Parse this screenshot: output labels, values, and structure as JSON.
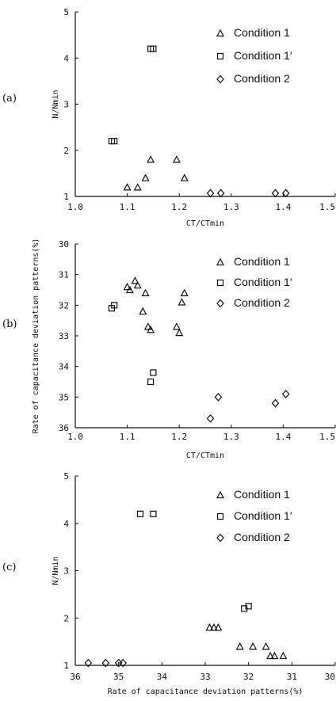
{
  "chart_data": [
    {
      "type": "scatter",
      "panel_label": "(a)",
      "xlabel": "CT/CTmin",
      "ylabel": "N/Nmin",
      "xlim": [
        1.0,
        1.5
      ],
      "ylim": [
        1,
        5
      ],
      "x_ticks": [
        "1.0",
        "1.1",
        "1.2",
        "1.3",
        "1.4",
        "1.5"
      ],
      "y_ticks": [
        "1",
        "2",
        "3",
        "4",
        "5"
      ],
      "legend": [
        "Condition 1",
        "Condition 1′",
        "Condition 2"
      ],
      "legend_position": "top-right",
      "series": [
        {
          "name": "Condition 1",
          "marker": "triangle",
          "points": [
            [
              1.1,
              1.2
            ],
            [
              1.12,
              1.2
            ],
            [
              1.135,
              1.4
            ],
            [
              1.145,
              1.8
            ],
            [
              1.195,
              1.8
            ],
            [
              1.21,
              1.4
            ]
          ]
        },
        {
          "name": "Condition 1′",
          "marker": "square",
          "points": [
            [
              1.07,
              2.2
            ],
            [
              1.075,
              2.2
            ],
            [
              1.145,
              4.2
            ],
            [
              1.15,
              4.2
            ]
          ]
        },
        {
          "name": "Condition 2",
          "marker": "diamond",
          "points": [
            [
              1.26,
              1.07
            ],
            [
              1.28,
              1.07
            ],
            [
              1.385,
              1.07
            ],
            [
              1.405,
              1.07
            ]
          ]
        }
      ]
    },
    {
      "type": "scatter",
      "panel_label": "(b)",
      "xlabel": "CT/CTmin",
      "ylabel": "Rate of capacitance deviation patterns(%)",
      "xlim": [
        1.0,
        1.5
      ],
      "ylim": [
        30,
        36
      ],
      "y_inverted": true,
      "x_ticks": [
        "1.0",
        "1.1",
        "1.2",
        "1.3",
        "1.4",
        "1.5"
      ],
      "y_ticks": [
        "30",
        "31",
        "32",
        "33",
        "34",
        "35",
        "36"
      ],
      "legend": [
        "Condition 1",
        "Condition 1′",
        "Condition 2"
      ],
      "legend_position": "top-right",
      "series": [
        {
          "name": "Condition 1",
          "marker": "triangle",
          "points": [
            [
              1.1,
              31.4
            ],
            [
              1.105,
              31.5
            ],
            [
              1.115,
              31.2
            ],
            [
              1.12,
              31.35
            ],
            [
              1.13,
              32.2
            ],
            [
              1.135,
              31.6
            ],
            [
              1.14,
              32.7
            ],
            [
              1.145,
              32.8
            ],
            [
              1.195,
              32.7
            ],
            [
              1.2,
              32.9
            ],
            [
              1.205,
              31.9
            ],
            [
              1.21,
              31.6
            ]
          ]
        },
        {
          "name": "Condition 1′",
          "marker": "square",
          "points": [
            [
              1.07,
              32.1
            ],
            [
              1.075,
              32.0
            ],
            [
              1.145,
              34.5
            ],
            [
              1.15,
              34.2
            ]
          ]
        },
        {
          "name": "Condition 2",
          "marker": "diamond",
          "points": [
            [
              1.26,
              35.7
            ],
            [
              1.275,
              35.0
            ],
            [
              1.385,
              35.2
            ],
            [
              1.405,
              34.9
            ]
          ]
        }
      ]
    },
    {
      "type": "scatter",
      "panel_label": "(c)",
      "xlabel": "Rate of capacitance deviation patterns(%)",
      "ylabel": "N/Nmin",
      "xlim": [
        36,
        30
      ],
      "ylim": [
        1,
        5
      ],
      "x_ticks": [
        "36",
        "35",
        "34",
        "33",
        "32",
        "31",
        "30"
      ],
      "y_ticks": [
        "1",
        "2",
        "3",
        "4",
        "5"
      ],
      "legend": [
        "Condition 1",
        "Condition 1′",
        "Condition 2"
      ],
      "legend_position": "top-right",
      "series": [
        {
          "name": "Condition 1",
          "marker": "triangle",
          "points": [
            [
              32.9,
              1.8
            ],
            [
              32.8,
              1.8
            ],
            [
              32.7,
              1.8
            ],
            [
              32.2,
              1.4
            ],
            [
              31.9,
              1.4
            ],
            [
              31.6,
              1.4
            ],
            [
              31.5,
              1.2
            ],
            [
              31.4,
              1.2
            ],
            [
              31.2,
              1.2
            ]
          ]
        },
        {
          "name": "Condition 1′",
          "marker": "square",
          "points": [
            [
              34.5,
              4.2
            ],
            [
              34.2,
              4.2
            ],
            [
              32.1,
              2.2
            ],
            [
              32.0,
              2.25
            ]
          ]
        },
        {
          "name": "Condition 2",
          "marker": "diamond",
          "points": [
            [
              35.7,
              1.05
            ],
            [
              35.3,
              1.05
            ],
            [
              35.0,
              1.05
            ],
            [
              34.9,
              1.05
            ]
          ]
        }
      ]
    }
  ]
}
